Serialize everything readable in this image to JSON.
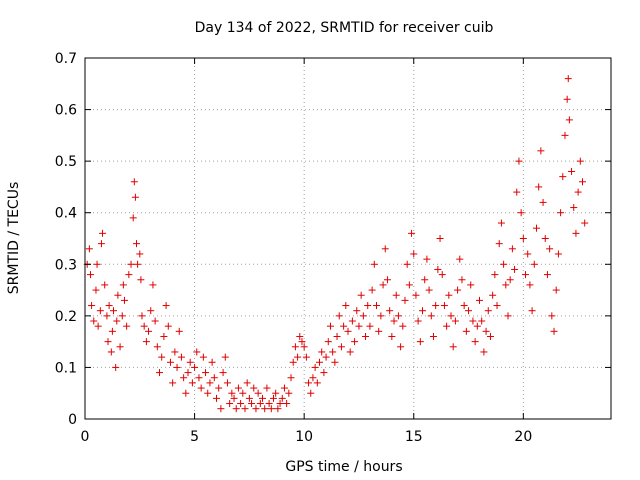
{
  "chart_data": {
    "type": "scatter",
    "title": "Day 134 of 2022, SRMTID for receiver cuib",
    "xlabel": "GPS time / hours",
    "ylabel": "SRMTID / TECUs",
    "xlim": [
      0,
      24
    ],
    "ylim": [
      0,
      0.7
    ],
    "xticks": [
      0,
      5,
      10,
      15,
      20
    ],
    "xtick_labels": [
      "0",
      "5",
      "10",
      "15",
      "20"
    ],
    "yticks": [
      0,
      0.1,
      0.2,
      0.3,
      0.4,
      0.5,
      0.6,
      0.7
    ],
    "ytick_labels": [
      "0",
      "0.1",
      "0.2",
      "0.3",
      "0.4",
      "0.5",
      "0.6",
      "0.7"
    ],
    "grid": true,
    "marker": "+",
    "series": [
      {
        "name": "SRMTID",
        "color": "#e00000",
        "points": [
          [
            0.1,
            0.3
          ],
          [
            0.2,
            0.33
          ],
          [
            0.25,
            0.28
          ],
          [
            0.3,
            0.22
          ],
          [
            0.4,
            0.19
          ],
          [
            0.5,
            0.25
          ],
          [
            0.55,
            0.3
          ],
          [
            0.6,
            0.18
          ],
          [
            0.7,
            0.21
          ],
          [
            0.75,
            0.34
          ],
          [
            0.8,
            0.36
          ],
          [
            0.9,
            0.26
          ],
          [
            1.0,
            0.2
          ],
          [
            1.05,
            0.15
          ],
          [
            1.1,
            0.22
          ],
          [
            1.2,
            0.13
          ],
          [
            1.25,
            0.17
          ],
          [
            1.3,
            0.21
          ],
          [
            1.4,
            0.1
          ],
          [
            1.45,
            0.19
          ],
          [
            1.5,
            0.24
          ],
          [
            1.6,
            0.14
          ],
          [
            1.7,
            0.2
          ],
          [
            1.75,
            0.26
          ],
          [
            1.8,
            0.23
          ],
          [
            1.9,
            0.18
          ],
          [
            2.0,
            0.28
          ],
          [
            2.1,
            0.3
          ],
          [
            2.2,
            0.39
          ],
          [
            2.25,
            0.46
          ],
          [
            2.3,
            0.43
          ],
          [
            2.35,
            0.34
          ],
          [
            2.4,
            0.3
          ],
          [
            2.5,
            0.32
          ],
          [
            2.55,
            0.27
          ],
          [
            2.6,
            0.2
          ],
          [
            2.7,
            0.18
          ],
          [
            2.8,
            0.15
          ],
          [
            2.9,
            0.17
          ],
          [
            3.0,
            0.21
          ],
          [
            3.1,
            0.26
          ],
          [
            3.2,
            0.19
          ],
          [
            3.3,
            0.14
          ],
          [
            3.4,
            0.09
          ],
          [
            3.5,
            0.12
          ],
          [
            3.6,
            0.16
          ],
          [
            3.7,
            0.22
          ],
          [
            3.8,
            0.18
          ],
          [
            3.9,
            0.11
          ],
          [
            4.0,
            0.07
          ],
          [
            4.1,
            0.13
          ],
          [
            4.2,
            0.1
          ],
          [
            4.3,
            0.17
          ],
          [
            4.4,
            0.12
          ],
          [
            4.5,
            0.08
          ],
          [
            4.6,
            0.05
          ],
          [
            4.7,
            0.09
          ],
          [
            4.8,
            0.11
          ],
          [
            4.9,
            0.07
          ],
          [
            5.0,
            0.1
          ],
          [
            5.1,
            0.13
          ],
          [
            5.2,
            0.08
          ],
          [
            5.3,
            0.06
          ],
          [
            5.4,
            0.12
          ],
          [
            5.5,
            0.09
          ],
          [
            5.6,
            0.05
          ],
          [
            5.7,
            0.07
          ],
          [
            5.8,
            0.11
          ],
          [
            5.9,
            0.08
          ],
          [
            6.0,
            0.04
          ],
          [
            6.1,
            0.06
          ],
          [
            6.2,
            0.02
          ],
          [
            6.3,
            0.09
          ],
          [
            6.4,
            0.12
          ],
          [
            6.5,
            0.07
          ],
          [
            6.6,
            0.03
          ],
          [
            6.7,
            0.05
          ],
          [
            6.8,
            0.04
          ],
          [
            6.9,
            0.02
          ],
          [
            7.0,
            0.06
          ],
          [
            7.1,
            0.03
          ],
          [
            7.2,
            0.05
          ],
          [
            7.3,
            0.02
          ],
          [
            7.4,
            0.07
          ],
          [
            7.5,
            0.04
          ],
          [
            7.6,
            0.03
          ],
          [
            7.7,
            0.06
          ],
          [
            7.8,
            0.02
          ],
          [
            7.9,
            0.05
          ],
          [
            8.0,
            0.03
          ],
          [
            8.1,
            0.04
          ],
          [
            8.2,
            0.02
          ],
          [
            8.3,
            0.06
          ],
          [
            8.4,
            0.03
          ],
          [
            8.5,
            0.02
          ],
          [
            8.6,
            0.04
          ],
          [
            8.7,
            0.05
          ],
          [
            8.8,
            0.02
          ],
          [
            8.9,
            0.03
          ],
          [
            9.0,
            0.04
          ],
          [
            9.1,
            0.06
          ],
          [
            9.2,
            0.03
          ],
          [
            9.3,
            0.05
          ],
          [
            9.4,
            0.08
          ],
          [
            9.5,
            0.11
          ],
          [
            9.6,
            0.14
          ],
          [
            9.7,
            0.12
          ],
          [
            9.8,
            0.16
          ],
          [
            9.9,
            0.15
          ],
          [
            10.0,
            0.14
          ],
          [
            10.1,
            0.12
          ],
          [
            10.2,
            0.07
          ],
          [
            10.3,
            0.05
          ],
          [
            10.4,
            0.08
          ],
          [
            10.5,
            0.1
          ],
          [
            10.6,
            0.07
          ],
          [
            10.7,
            0.11
          ],
          [
            10.8,
            0.13
          ],
          [
            10.9,
            0.09
          ],
          [
            11.0,
            0.12
          ],
          [
            11.1,
            0.15
          ],
          [
            11.2,
            0.18
          ],
          [
            11.3,
            0.13
          ],
          [
            11.4,
            0.11
          ],
          [
            11.5,
            0.16
          ],
          [
            11.6,
            0.2
          ],
          [
            11.7,
            0.14
          ],
          [
            11.8,
            0.18
          ],
          [
            11.9,
            0.22
          ],
          [
            12.0,
            0.17
          ],
          [
            12.1,
            0.13
          ],
          [
            12.2,
            0.19
          ],
          [
            12.3,
            0.15
          ],
          [
            12.4,
            0.21
          ],
          [
            12.5,
            0.18
          ],
          [
            12.6,
            0.24
          ],
          [
            12.7,
            0.2
          ],
          [
            12.8,
            0.16
          ],
          [
            12.9,
            0.22
          ],
          [
            13.0,
            0.18
          ],
          [
            13.1,
            0.25
          ],
          [
            13.2,
            0.3
          ],
          [
            13.3,
            0.22
          ],
          [
            13.4,
            0.17
          ],
          [
            13.5,
            0.2
          ],
          [
            13.6,
            0.26
          ],
          [
            13.7,
            0.33
          ],
          [
            13.8,
            0.27
          ],
          [
            13.9,
            0.21
          ],
          [
            14.0,
            0.16
          ],
          [
            14.1,
            0.19
          ],
          [
            14.2,
            0.24
          ],
          [
            14.3,
            0.2
          ],
          [
            14.4,
            0.14
          ],
          [
            14.5,
            0.18
          ],
          [
            14.6,
            0.23
          ],
          [
            14.7,
            0.3
          ],
          [
            14.8,
            0.26
          ],
          [
            14.9,
            0.36
          ],
          [
            15.0,
            0.32
          ],
          [
            15.1,
            0.24
          ],
          [
            15.2,
            0.19
          ],
          [
            15.3,
            0.15
          ],
          [
            15.4,
            0.21
          ],
          [
            15.5,
            0.27
          ],
          [
            15.6,
            0.31
          ],
          [
            15.7,
            0.25
          ],
          [
            15.8,
            0.2
          ],
          [
            15.9,
            0.16
          ],
          [
            16.0,
            0.22
          ],
          [
            16.1,
            0.29
          ],
          [
            16.2,
            0.35
          ],
          [
            16.3,
            0.28
          ],
          [
            16.4,
            0.22
          ],
          [
            16.5,
            0.18
          ],
          [
            16.6,
            0.24
          ],
          [
            16.7,
            0.2
          ],
          [
            16.8,
            0.14
          ],
          [
            16.9,
            0.19
          ],
          [
            17.0,
            0.25
          ],
          [
            17.1,
            0.31
          ],
          [
            17.2,
            0.27
          ],
          [
            17.3,
            0.22
          ],
          [
            17.4,
            0.17
          ],
          [
            17.5,
            0.21
          ],
          [
            17.6,
            0.26
          ],
          [
            17.7,
            0.19
          ],
          [
            17.8,
            0.15
          ],
          [
            17.9,
            0.18
          ],
          [
            18.0,
            0.23
          ],
          [
            18.1,
            0.19
          ],
          [
            18.2,
            0.13
          ],
          [
            18.3,
            0.17
          ],
          [
            18.4,
            0.21
          ],
          [
            18.5,
            0.16
          ],
          [
            18.6,
            0.24
          ],
          [
            18.7,
            0.28
          ],
          [
            18.8,
            0.22
          ],
          [
            18.9,
            0.34
          ],
          [
            19.0,
            0.38
          ],
          [
            19.1,
            0.3
          ],
          [
            19.2,
            0.26
          ],
          [
            19.3,
            0.2
          ],
          [
            19.4,
            0.27
          ],
          [
            19.5,
            0.33
          ],
          [
            19.6,
            0.29
          ],
          [
            19.7,
            0.44
          ],
          [
            19.8,
            0.5
          ],
          [
            19.9,
            0.4
          ],
          [
            20.0,
            0.35
          ],
          [
            20.1,
            0.28
          ],
          [
            20.2,
            0.32
          ],
          [
            20.3,
            0.26
          ],
          [
            20.4,
            0.21
          ],
          [
            20.5,
            0.3
          ],
          [
            20.6,
            0.37
          ],
          [
            20.7,
            0.45
          ],
          [
            20.8,
            0.52
          ],
          [
            20.9,
            0.42
          ],
          [
            21.0,
            0.35
          ],
          [
            21.1,
            0.28
          ],
          [
            21.2,
            0.33
          ],
          [
            21.3,
            0.2
          ],
          [
            21.4,
            0.17
          ],
          [
            21.5,
            0.25
          ],
          [
            21.6,
            0.32
          ],
          [
            21.7,
            0.4
          ],
          [
            21.8,
            0.47
          ],
          [
            21.9,
            0.55
          ],
          [
            22.0,
            0.62
          ],
          [
            22.05,
            0.66
          ],
          [
            22.1,
            0.58
          ],
          [
            22.2,
            0.48
          ],
          [
            22.3,
            0.41
          ],
          [
            22.4,
            0.36
          ],
          [
            22.5,
            0.44
          ],
          [
            22.6,
            0.5
          ],
          [
            22.7,
            0.46
          ],
          [
            22.8,
            0.38
          ]
        ]
      }
    ]
  }
}
